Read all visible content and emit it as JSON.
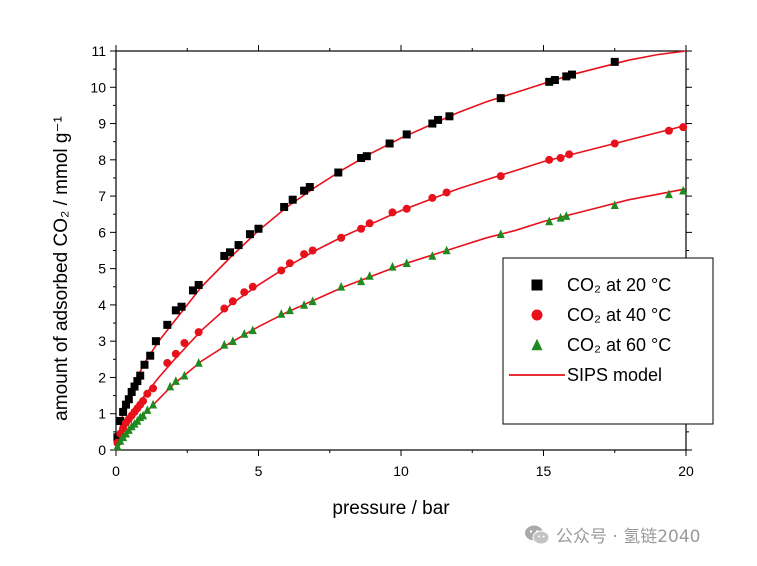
{
  "chart_data": {
    "type": "scatter",
    "title": "",
    "xlabel": "pressure / bar",
    "ylabel": "amount of adsorbed CO₂ / mmol g⁻¹",
    "xlim": [
      0,
      20
    ],
    "ylim": [
      0,
      11
    ],
    "x_ticks": [
      "0",
      "5",
      "10",
      "15",
      "20"
    ],
    "y_ticks": [
      "0",
      "1",
      "2",
      "3",
      "4",
      "5",
      "6",
      "7",
      "8",
      "9",
      "10",
      "11"
    ],
    "grid": false,
    "legend_position": "lower-right",
    "series": [
      {
        "name": "CO₂ at 20 °C",
        "marker": "square",
        "color": "#000000",
        "x": [
          0.05,
          0.15,
          0.25,
          0.35,
          0.45,
          0.55,
          0.65,
          0.75,
          0.85,
          1.0,
          1.2,
          1.4,
          1.8,
          2.1,
          2.3,
          2.7,
          2.9,
          3.8,
          4.0,
          4.3,
          4.7,
          5.0,
          5.9,
          6.2,
          6.6,
          6.8,
          7.8,
          8.6,
          8.8,
          9.6,
          10.2,
          11.1,
          11.3,
          11.7,
          13.5,
          15.2,
          15.4,
          15.8,
          16.0,
          17.5
        ],
        "y": [
          0.35,
          0.8,
          1.05,
          1.25,
          1.4,
          1.6,
          1.75,
          1.9,
          2.05,
          2.35,
          2.6,
          3.0,
          3.45,
          3.85,
          3.95,
          4.4,
          4.55,
          5.35,
          5.45,
          5.65,
          5.95,
          6.1,
          6.7,
          6.9,
          7.15,
          7.25,
          7.65,
          8.05,
          8.1,
          8.45,
          8.7,
          9.0,
          9.1,
          9.2,
          9.7,
          10.15,
          10.2,
          10.3,
          10.35,
          10.7
        ]
      },
      {
        "name": "CO₂ at 40 °C",
        "marker": "circle",
        "color": "#e8101a",
        "x": [
          0.05,
          0.15,
          0.25,
          0.35,
          0.45,
          0.55,
          0.65,
          0.75,
          0.85,
          0.95,
          1.1,
          1.3,
          1.8,
          2.1,
          2.4,
          2.9,
          3.8,
          4.1,
          4.5,
          4.8,
          5.8,
          6.1,
          6.6,
          6.9,
          7.9,
          8.6,
          8.9,
          9.7,
          10.2,
          11.1,
          11.6,
          13.5,
          15.2,
          15.6,
          15.9,
          17.5,
          19.4,
          19.9
        ],
        "y": [
          0.2,
          0.45,
          0.6,
          0.75,
          0.85,
          0.95,
          1.05,
          1.15,
          1.25,
          1.35,
          1.55,
          1.7,
          2.4,
          2.65,
          2.95,
          3.25,
          3.9,
          4.1,
          4.35,
          4.5,
          4.95,
          5.15,
          5.4,
          5.5,
          5.85,
          6.1,
          6.25,
          6.55,
          6.65,
          6.95,
          7.1,
          7.55,
          8.0,
          8.05,
          8.15,
          8.45,
          8.8,
          8.9
        ]
      },
      {
        "name": "CO₂ at 60 °C",
        "marker": "triangle",
        "color": "#1f8a1f",
        "x": [
          0.05,
          0.15,
          0.25,
          0.35,
          0.45,
          0.55,
          0.65,
          0.75,
          0.85,
          0.95,
          1.1,
          1.3,
          1.9,
          2.1,
          2.4,
          2.9,
          3.8,
          4.1,
          4.5,
          4.8,
          5.8,
          6.1,
          6.6,
          6.9,
          7.9,
          8.6,
          8.9,
          9.7,
          10.2,
          11.1,
          11.6,
          13.5,
          15.2,
          15.6,
          15.8,
          17.5,
          19.4,
          19.9
        ],
        "y": [
          0.1,
          0.25,
          0.35,
          0.45,
          0.55,
          0.65,
          0.72,
          0.8,
          0.9,
          0.95,
          1.1,
          1.25,
          1.75,
          1.9,
          2.05,
          2.4,
          2.9,
          3.0,
          3.2,
          3.3,
          3.75,
          3.85,
          4.0,
          4.1,
          4.5,
          4.65,
          4.8,
          5.05,
          5.15,
          5.35,
          5.5,
          5.95,
          6.3,
          6.4,
          6.45,
          6.75,
          7.05,
          7.15
        ]
      }
    ],
    "model": {
      "name": "SIPS model",
      "color": "#e8101a",
      "curves": [
        {
          "x": [
            0,
            0.25,
            0.5,
            1,
            1.5,
            2,
            3,
            4,
            5,
            6,
            7,
            8,
            9,
            10,
            11,
            12,
            13,
            14,
            15,
            16,
            17,
            18,
            19,
            20
          ],
          "y": [
            0,
            1.05,
            1.6,
            2.4,
            3.0,
            3.5,
            4.5,
            5.3,
            6.05,
            6.7,
            7.25,
            7.75,
            8.2,
            8.6,
            8.95,
            9.3,
            9.6,
            9.85,
            10.1,
            10.35,
            10.55,
            10.75,
            10.9,
            11.05
          ]
        },
        {
          "x": [
            0,
            0.25,
            0.5,
            1,
            1.5,
            2,
            3,
            4,
            5,
            6,
            7,
            8,
            9,
            10,
            11,
            12,
            13,
            14,
            15,
            16,
            17,
            18,
            19,
            20
          ],
          "y": [
            0,
            0.6,
            0.95,
            1.5,
            2.0,
            2.45,
            3.3,
            4.0,
            4.55,
            5.05,
            5.5,
            5.9,
            6.25,
            6.6,
            6.9,
            7.2,
            7.45,
            7.7,
            7.95,
            8.15,
            8.35,
            8.55,
            8.75,
            8.95
          ]
        },
        {
          "x": [
            0,
            0.25,
            0.5,
            1,
            1.5,
            2,
            3,
            4,
            5,
            6,
            7,
            8,
            9,
            10,
            11,
            12,
            13,
            14,
            15,
            16,
            17,
            18,
            19,
            20
          ],
          "y": [
            0,
            0.35,
            0.6,
            1.0,
            1.4,
            1.8,
            2.45,
            2.95,
            3.4,
            3.8,
            4.15,
            4.5,
            4.8,
            5.1,
            5.35,
            5.6,
            5.85,
            6.05,
            6.3,
            6.5,
            6.7,
            6.9,
            7.05,
            7.2
          ]
        }
      ]
    }
  },
  "legend": {
    "items": [
      {
        "label": "CO₂ at 20 °C",
        "marker": "square",
        "color": "#000000"
      },
      {
        "label": "CO₂ at 40 °C",
        "marker": "circle",
        "color": "#e8101a"
      },
      {
        "label": "CO₂ at 60 °C",
        "marker": "triangle",
        "color": "#1f8a1f"
      },
      {
        "label": "SIPS model",
        "marker": "line",
        "color": "#e8101a"
      }
    ]
  },
  "watermark": {
    "icon": "wechat-icon",
    "text": "公众号 · 氢链2040"
  }
}
